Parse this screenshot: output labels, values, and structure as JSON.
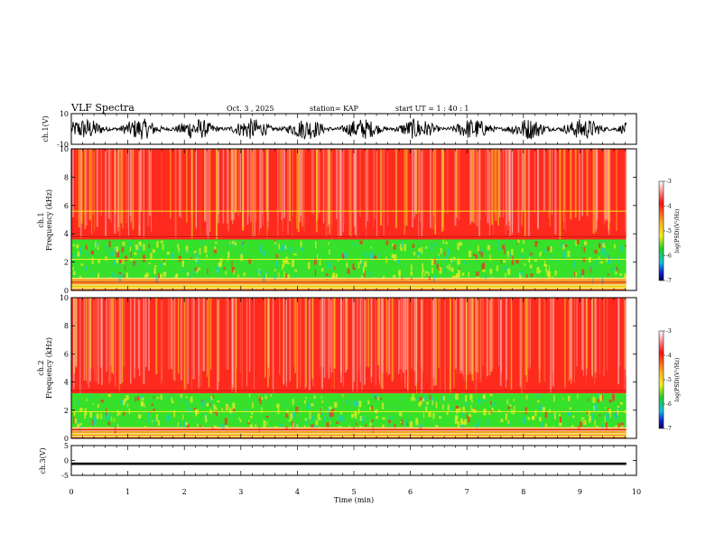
{
  "header": {
    "title": "VLF Spectra",
    "date": "Oct. 3  , 2025",
    "station": "station= KAP",
    "start": "start  UT  =   1 : 40 : 1"
  },
  "colors": {
    "red": "#ff2a1e",
    "green": "#37e02a",
    "yellow": "#f1ee22",
    "cyan": "#12d0d0",
    "pink": "#f7c0c0",
    "black": "#000000"
  },
  "chart_data": [
    {
      "type": "line",
      "name": "ch1-waveform",
      "ylabel": "ch.1(V)",
      "ylim": [
        -10,
        10
      ],
      "yticks": [
        "10",
        "-10"
      ],
      "xlim": [
        0,
        10
      ],
      "note": "noisy waveform, amplitude about +/-6 V"
    },
    {
      "type": "heatmap",
      "name": "ch1-spectrogram",
      "ylabel_line1": "ch.1",
      "ylabel_line2": "Frequency  (kHz)",
      "ylim": [
        0,
        10
      ],
      "yticks": [
        "0",
        "2",
        "4",
        "6",
        "8",
        "10"
      ],
      "xlim": [
        0,
        10
      ],
      "colorbar_label": "log(PSD)(V²/Hz)",
      "colorbar_ticks": [
        "-3",
        "-4",
        "-5",
        "-6",
        "-7"
      ],
      "colorbar_range": [
        -7,
        -3
      ],
      "bands": [
        {
          "from": 0.0,
          "to": 0.9,
          "level": "mixed"
        },
        {
          "from": 0.9,
          "to": 3.6,
          "level": "low"
        },
        {
          "from": 3.6,
          "to": 10.0,
          "level": "high"
        }
      ],
      "lines_khz": [
        0.3,
        0.6,
        2.2,
        3.8,
        5.6
      ]
    },
    {
      "type": "heatmap",
      "name": "ch2-spectrogram",
      "ylabel_line1": "ch.2",
      "ylabel_line2": "Frequency  (kHz)",
      "ylim": [
        0,
        10
      ],
      "yticks": [
        "0",
        "2",
        "4",
        "6",
        "8",
        "10"
      ],
      "xlim": [
        0,
        10
      ],
      "colorbar_label": "log(PSD)(V²/Hz)",
      "colorbar_ticks": [
        "-3",
        "-4",
        "-5",
        "-6",
        "-7"
      ],
      "colorbar_range": [
        -7,
        -3
      ],
      "bands": [
        {
          "from": 0.0,
          "to": 0.8,
          "level": "mixed"
        },
        {
          "from": 0.8,
          "to": 3.2,
          "level": "low"
        },
        {
          "from": 3.2,
          "to": 10.0,
          "level": "high"
        }
      ],
      "lines_khz": [
        0.3,
        0.6,
        1.9,
        3.4
      ]
    },
    {
      "type": "line",
      "name": "ch3-waveform",
      "ylabel": "ch.3(V)",
      "ylim": [
        -5,
        5
      ],
      "yticks": [
        "5",
        "0",
        "-5"
      ],
      "xlim": [
        0,
        10
      ],
      "note": "thick flat signal near -1 V"
    }
  ],
  "xaxis": {
    "label": "Time  (min)",
    "ticks": [
      "0",
      "1",
      "2",
      "3",
      "4",
      "5",
      "6",
      "7",
      "8",
      "9",
      "10"
    ],
    "data_end": 9.82
  }
}
